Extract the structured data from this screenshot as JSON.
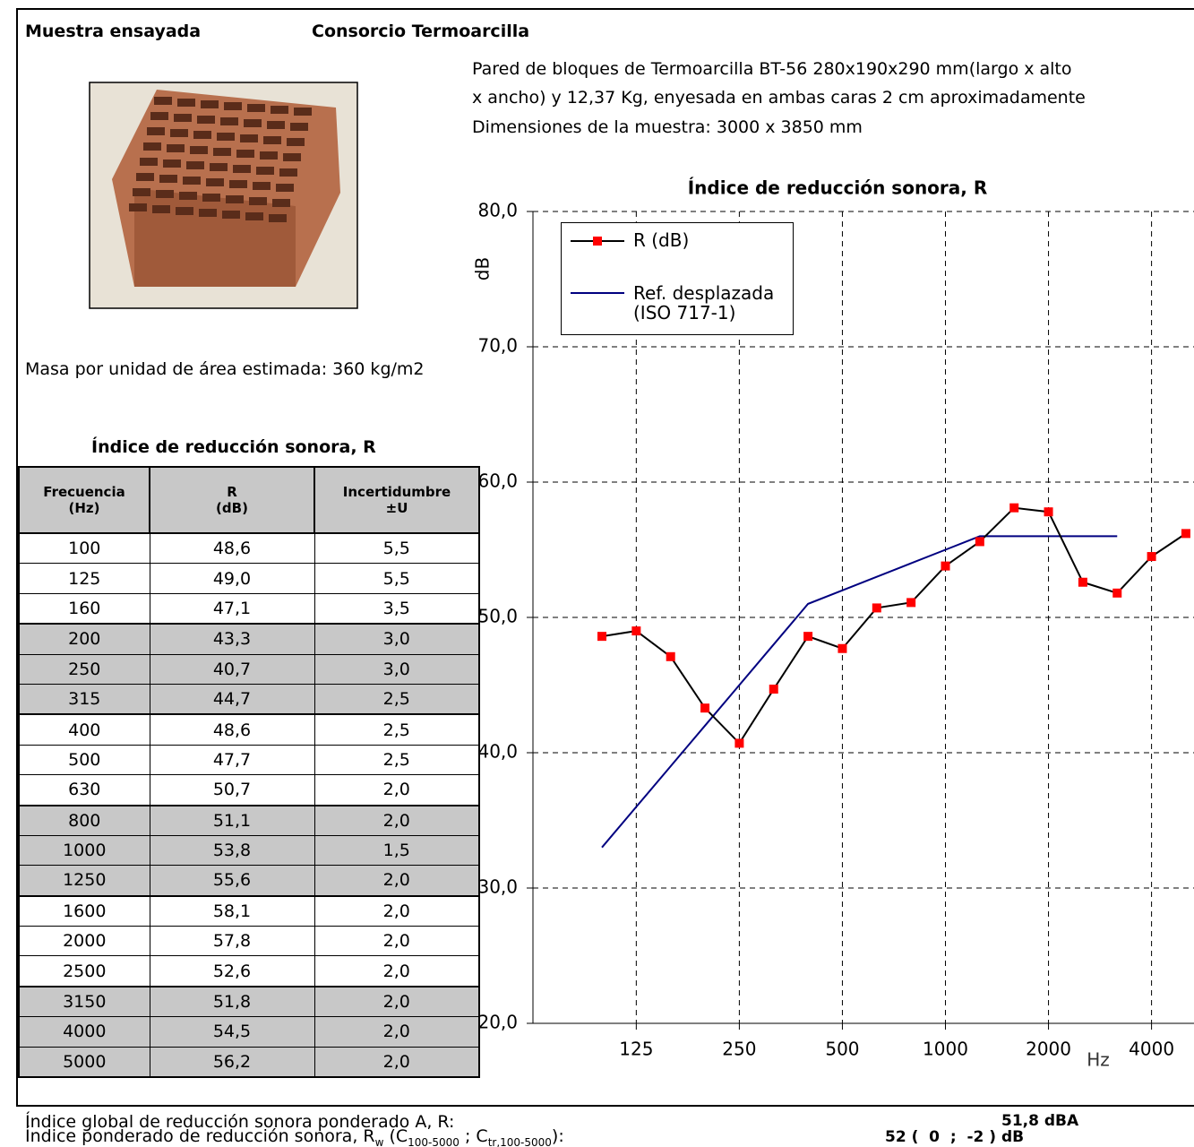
{
  "header": {
    "label": "Muestra ensayada",
    "sample": "Consorcio Termoarcilla"
  },
  "description": [
    "Pared de bloques de Termoarcilla BT-56 280x190x290 mm(largo x alto",
    "x ancho) y 12,37 Kg, enyesada en ambas caras 2 cm aproximadamente",
    "Dimensiones de la muestra: 3000 x 3850 mm"
  ],
  "mass": "Masa por unidad de área estimada: 360 kg/m2",
  "table": {
    "title": "Índice de reducción sonora, R",
    "header": [
      "Frecuencia\n(Hz)",
      "R\n(dB)",
      "Incertidumbre\n±U"
    ],
    "rows": [
      [
        "100",
        "48,6",
        "5,5"
      ],
      [
        "125",
        "49,0",
        "5,5"
      ],
      [
        "160",
        "47,1",
        "3,5"
      ],
      [
        "200",
        "43,3",
        "3,0"
      ],
      [
        "250",
        "40,7",
        "3,0"
      ],
      [
        "315",
        "44,7",
        "2,5"
      ],
      [
        "400",
        "48,6",
        "2,5"
      ],
      [
        "500",
        "47,7",
        "2,5"
      ],
      [
        "630",
        "50,7",
        "2,0"
      ],
      [
        "800",
        "51,1",
        "2,0"
      ],
      [
        "1000",
        "53,8",
        "1,5"
      ],
      [
        "1250",
        "55,6",
        "2,0"
      ],
      [
        "1600",
        "58,1",
        "2,0"
      ],
      [
        "2000",
        "57,8",
        "2,0"
      ],
      [
        "2500",
        "52,6",
        "2,0"
      ],
      [
        "3150",
        "51,8",
        "2,0"
      ],
      [
        "4000",
        "54,5",
        "2,0"
      ],
      [
        "5000",
        "56,2",
        "2,0"
      ]
    ]
  },
  "results": [
    {
      "label": [
        "Índice global de reducción sonora ponderado A, R:"
      ],
      "value": "51,8 dBA"
    },
    {
      "label": [
        "Índice ponderado de reducción sonora, R",
        "w",
        " (C",
        "100-5000",
        " ; C",
        "tr,100-5000",
        "):"
      ],
      "value": "52 (  0  ;  -2 ) dB"
    }
  ],
  "chart_data": {
    "type": "line",
    "title": "Índice de reducción sonora, R",
    "ylabel": "dB",
    "xlabel": "Hz",
    "categories": [
      null,
      "125",
      null,
      null,
      "250",
      null,
      null,
      "500",
      null,
      null,
      "1000",
      null,
      null,
      "2000",
      null,
      null,
      "4000",
      null
    ],
    "series": [
      {
        "name": "R (dB)",
        "color": "#000000",
        "marker_color": "#ff0000",
        "values": [
          48.6,
          49.0,
          47.1,
          43.3,
          40.7,
          44.7,
          48.6,
          47.7,
          50.7,
          51.1,
          53.8,
          55.6,
          58.1,
          57.8,
          52.6,
          51.8,
          54.5,
          56.2
        ]
      },
      {
        "name": "Ref. desplazada\n(ISO 717-1)",
        "color": "#000080",
        "values": [
          33,
          36,
          39,
          42,
          45,
          48,
          51,
          52,
          53,
          54,
          55,
          56,
          56,
          56,
          56,
          56,
          null,
          null
        ]
      }
    ],
    "ylim": [
      20,
      80
    ],
    "yticks": [
      {
        "value": 20,
        "label": "20,0"
      },
      {
        "value": 30,
        "label": "30,0"
      },
      {
        "value": 40,
        "label": "40,0"
      },
      {
        "value": 50,
        "label": "50,0"
      },
      {
        "value": 60,
        "label": "60,0"
      },
      {
        "value": 70,
        "label": "70,0"
      },
      {
        "value": 80,
        "label": "80,0"
      }
    ],
    "grid": true
  }
}
